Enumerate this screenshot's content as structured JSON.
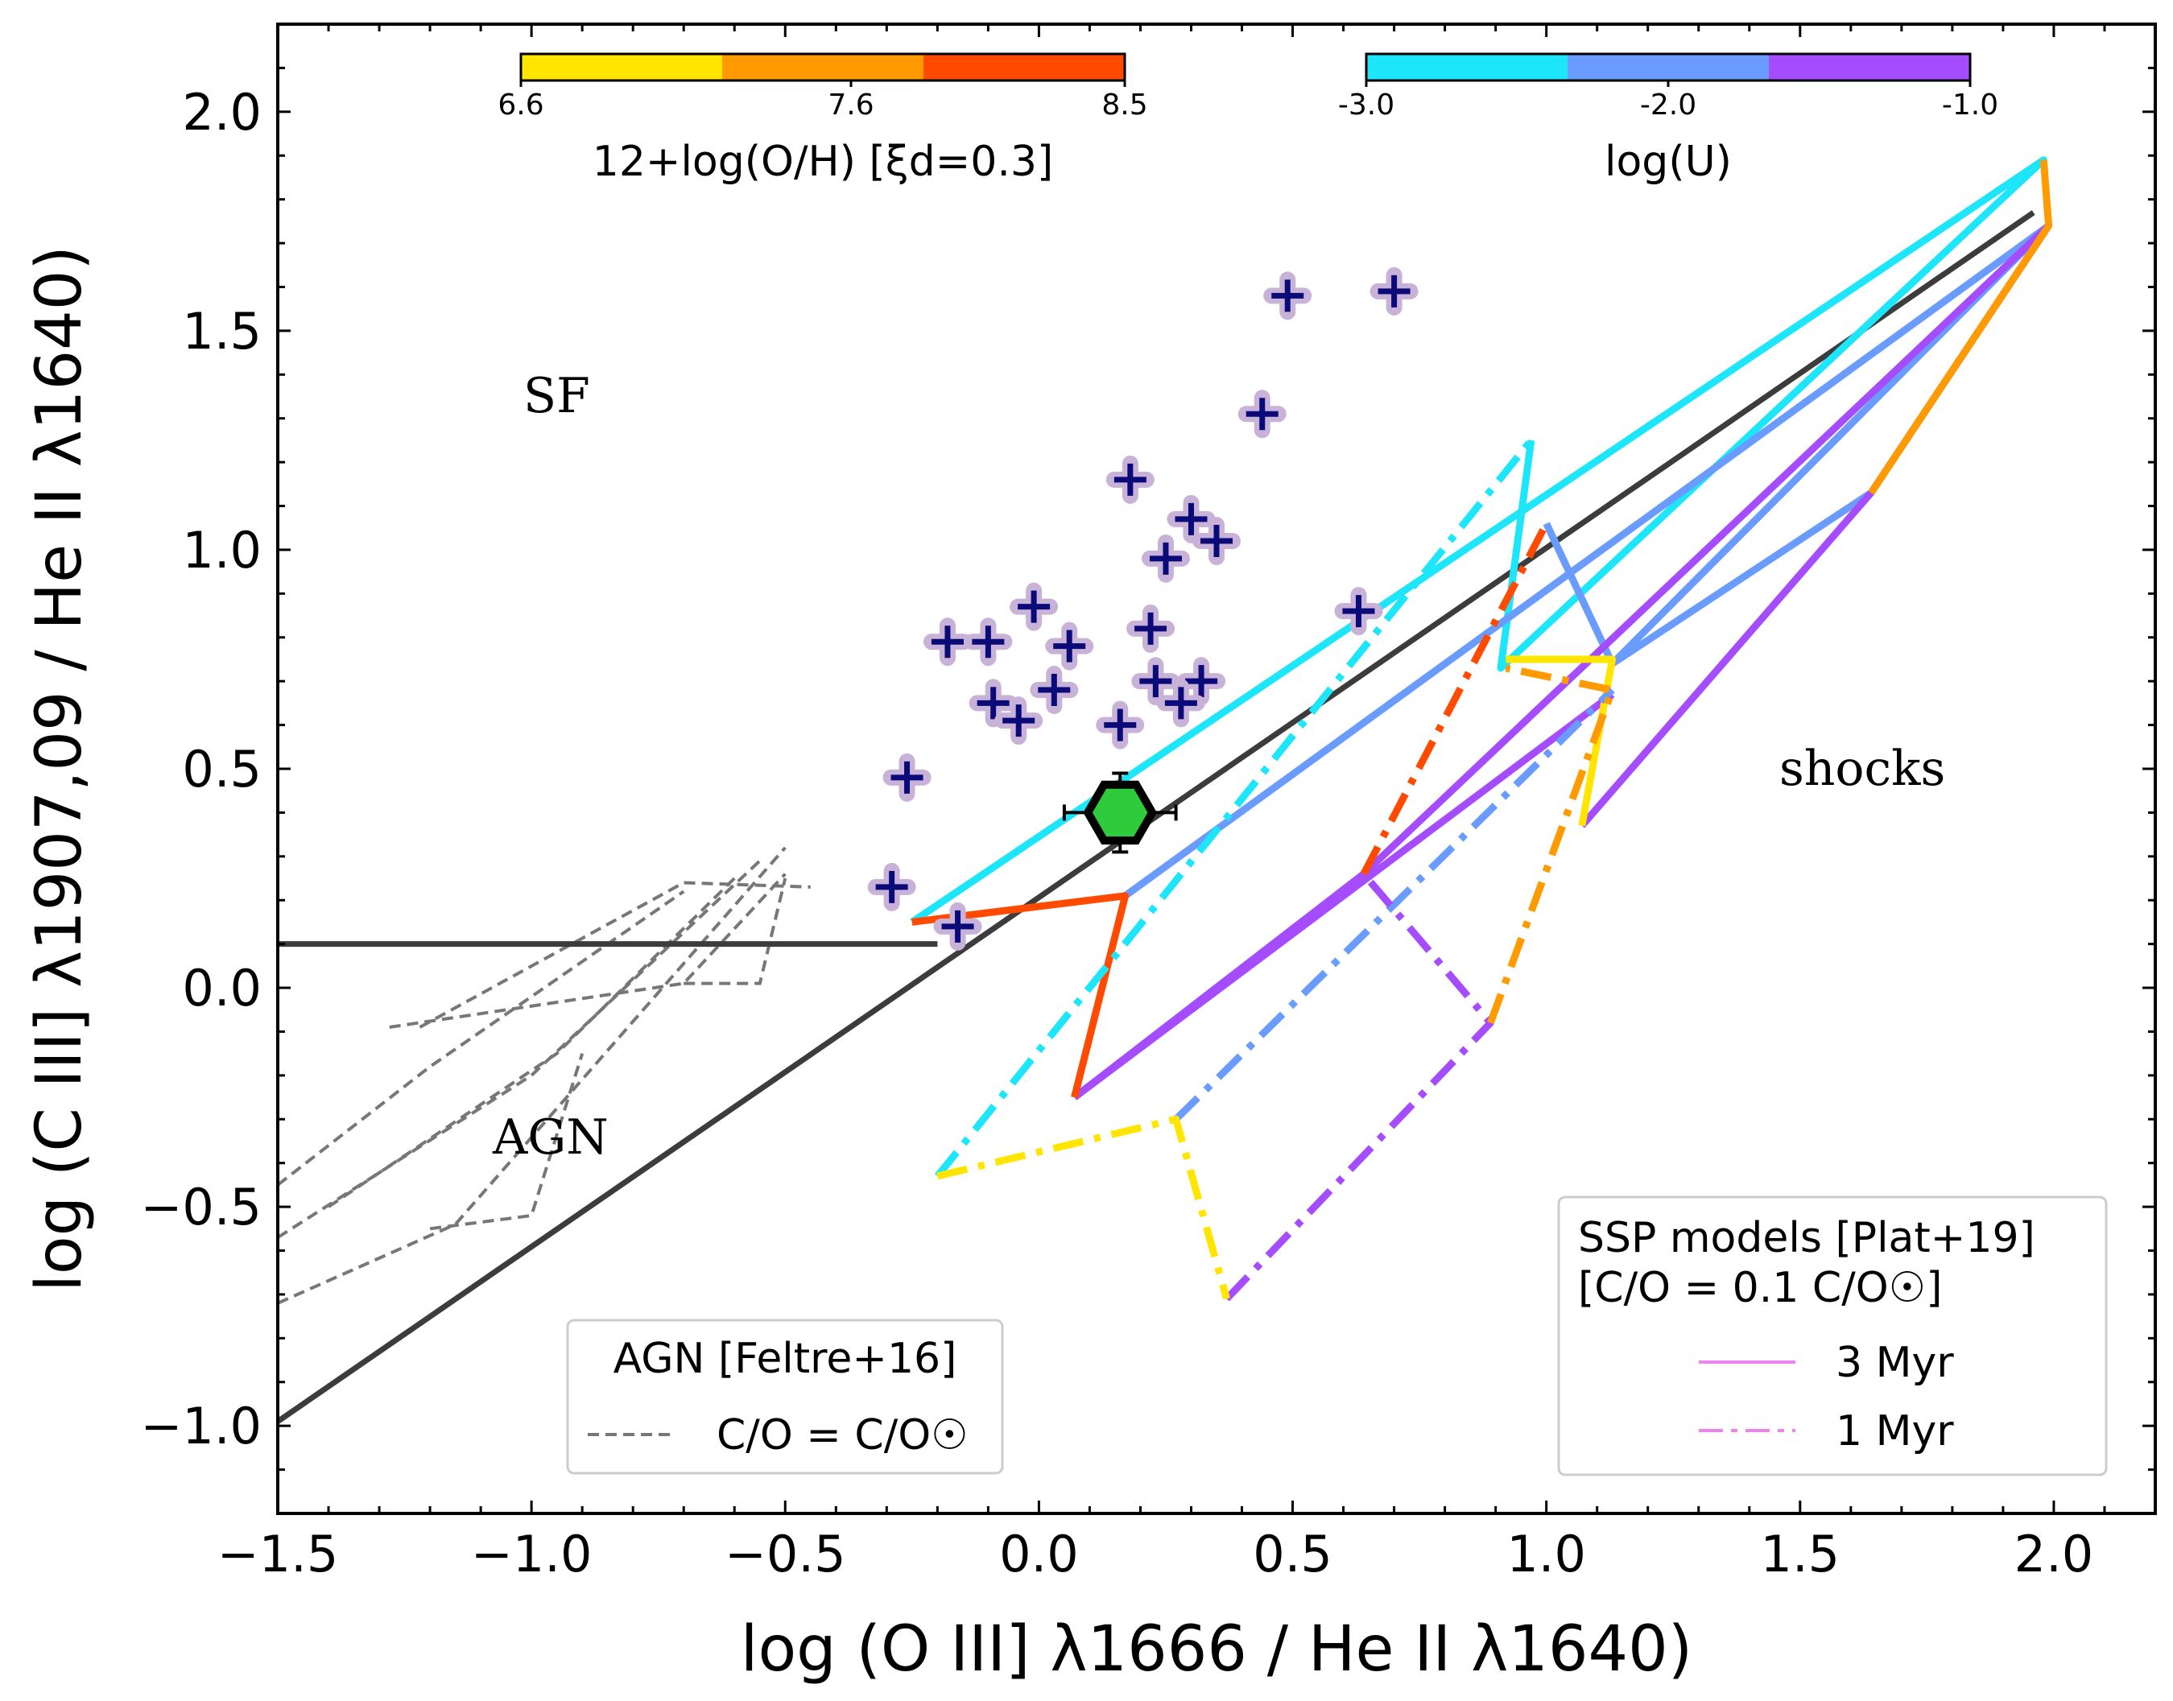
{
  "chart_data": {
    "type": "scatter",
    "xlabel": "log (O III] λ1666 / He II λ1640)",
    "ylabel": "log (C III] λ1907,09 / He II λ1640)",
    "xlim": [
      -1.5,
      2.2
    ],
    "ylim": [
      -1.2,
      2.2
    ],
    "xticks": [
      "−1.5",
      "−1.0",
      "−0.5",
      "0.0",
      "0.5",
      "1.0",
      "1.5",
      "2.0"
    ],
    "yticks": [
      "−1.0",
      "−0.5",
      "0.0",
      "0.5",
      "1.0",
      "1.5",
      "2.0"
    ],
    "region_labels": [
      "SF",
      "AGN",
      "shocks"
    ],
    "colorbars": [
      {
        "title": "12+log(O/H) [ξd=0.3]",
        "ticks": [
          "6.6",
          "7.6",
          "8.5"
        ],
        "colors": [
          "#ffe500",
          "#ff9a00",
          "#ff4a00"
        ]
      },
      {
        "title": "log(U)",
        "ticks": [
          "-3.0",
          "-2.0",
          "-1.0"
        ],
        "colors": [
          "#1ee6fa",
          "#6a9cff",
          "#a64cff"
        ]
      }
    ],
    "legends": [
      {
        "title": "AGN [Feltre+16]",
        "entries": [
          {
            "label": "C/O = C/O☉",
            "style": "dashed",
            "color": "#777777"
          }
        ]
      },
      {
        "title_lines": [
          "SSP models [Plat+19]",
          "[C/O = 0.1 C/O☉]"
        ],
        "entries": [
          {
            "label": "3 Myr",
            "style": "solid",
            "color": "#ee82ee"
          },
          {
            "label": "1 Myr",
            "style": "dashdot",
            "color": "#ee82ee"
          }
        ]
      }
    ],
    "dividing_lines": [
      {
        "points": [
          [
            -1.5,
            0.1
          ],
          [
            -0.2,
            0.1
          ]
        ],
        "color": "#3c3c3c"
      },
      {
        "points": [
          [
            -1.5,
            -0.99
          ],
          [
            1.96,
            1.77
          ]
        ],
        "color": "#3c3c3c"
      }
    ],
    "scatter_points": [
      [
        0.49,
        1.58
      ],
      [
        0.7,
        1.59
      ],
      [
        0.44,
        1.31
      ],
      [
        0.18,
        1.16
      ],
      [
        0.3,
        1.07
      ],
      [
        0.35,
        1.02
      ],
      [
        0.25,
        0.98
      ],
      [
        -0.01,
        0.87
      ],
      [
        0.63,
        0.86
      ],
      [
        0.22,
        0.82
      ],
      [
        -0.18,
        0.79
      ],
      [
        -0.1,
        0.79
      ],
      [
        0.06,
        0.78
      ],
      [
        0.23,
        0.7
      ],
      [
        0.32,
        0.7
      ],
      [
        -0.09,
        0.65
      ],
      [
        0.03,
        0.68
      ],
      [
        0.28,
        0.65
      ],
      [
        -0.04,
        0.61
      ],
      [
        0.16,
        0.6
      ],
      [
        -0.26,
        0.48
      ],
      [
        -0.29,
        0.23
      ],
      [
        -0.16,
        0.14
      ]
    ],
    "highlight_point": {
      "x": 0.16,
      "y": 0.4,
      "xerr": 0.11,
      "yerr": 0.09
    },
    "model_grid_lines": [
      {
        "style": "solid",
        "color": "#1ee6fa",
        "points": [
          [
            -0.25,
            0.15
          ],
          [
            1.98,
            1.89
          ],
          [
            0.91,
            0.73
          ],
          [
            0.97,
            1.25
          ]
        ]
      },
      {
        "style": "solid",
        "color": "#6a9cff",
        "points": [
          [
            0.17,
            0.21
          ],
          [
            1.99,
            1.74
          ],
          [
            1.13,
            0.74
          ],
          [
            1.0,
            1.06
          ]
        ]
      },
      {
        "style": "solid",
        "color": "#6a9cff",
        "points": [
          [
            1.13,
            0.74
          ],
          [
            1.64,
            1.13
          ]
        ]
      },
      {
        "style": "solid",
        "color": "#a64cff",
        "points": [
          [
            0.07,
            -0.25
          ],
          [
            1.13,
            0.67
          ]
        ]
      },
      {
        "style": "solid",
        "color": "#a64cff",
        "points": [
          [
            1.07,
            0.37
          ],
          [
            1.64,
            1.13
          ],
          [
            1.99,
            1.74
          ],
          [
            0.64,
            0.26
          ],
          [
            0.07,
            -0.25
          ]
        ]
      },
      {
        "style": "solid",
        "color": "#ffe500",
        "points": [
          [
            1.07,
            0.37
          ],
          [
            1.13,
            0.75
          ],
          [
            0.92,
            0.75
          ]
        ]
      },
      {
        "style": "solid",
        "color": "#ff9a00",
        "points": [
          [
            1.64,
            1.13
          ],
          [
            1.99,
            1.74
          ],
          [
            1.98,
            1.89
          ]
        ]
      },
      {
        "style": "solid",
        "color": "#ff4a00",
        "points": [
          [
            -0.25,
            0.15
          ],
          [
            0.17,
            0.21
          ],
          [
            0.07,
            -0.25
          ]
        ]
      },
      {
        "style": "dashdot",
        "color": "#1ee6fa",
        "points": [
          [
            -0.2,
            -0.43
          ],
          [
            0.97,
            1.25
          ]
        ]
      },
      {
        "style": "dashdot",
        "color": "#6a9cff",
        "points": [
          [
            0.27,
            -0.3
          ],
          [
            1.13,
            0.68
          ]
        ]
      },
      {
        "style": "dashdot",
        "color": "#a64cff",
        "points": [
          [
            0.37,
            -0.71
          ],
          [
            0.89,
            -0.08
          ],
          [
            0.64,
            0.26
          ]
        ]
      },
      {
        "style": "dashdot",
        "color": "#ffe500",
        "points": [
          [
            -0.2,
            -0.43
          ],
          [
            0.27,
            -0.3
          ],
          [
            0.37,
            -0.71
          ]
        ]
      },
      {
        "style": "dashdot",
        "color": "#ff9a00",
        "points": [
          [
            0.89,
            -0.08
          ],
          [
            1.13,
            0.68
          ],
          [
            0.92,
            0.73
          ]
        ]
      },
      {
        "style": "dashdot",
        "color": "#ff4a00",
        "points": [
          [
            0.64,
            0.26
          ],
          [
            1.0,
            1.06
          ]
        ]
      }
    ],
    "agn_grid_lines": [
      [
        [
          -1.28,
          -0.09
        ],
        [
          -0.7,
          0.01
        ],
        [
          -0.5,
          0.26
        ]
      ],
      [
        [
          -1.22,
          -0.09
        ],
        [
          -0.7,
          0.24
        ],
        [
          -0.45,
          0.23
        ]
      ],
      [
        [
          -1.5,
          -0.45
        ],
        [
          -1.2,
          -0.18
        ],
        [
          -0.7,
          0.22
        ]
      ],
      [
        [
          -1.5,
          -0.57
        ],
        [
          -1.0,
          -0.2
        ],
        [
          -0.55,
          0.29
        ]
      ],
      [
        [
          -1.5,
          -0.72
        ],
        [
          -1.15,
          -0.54
        ],
        [
          -0.5,
          0.32
        ]
      ],
      [
        [
          -1.4,
          -0.5
        ],
        [
          -0.95,
          -0.15
        ],
        [
          -0.6,
          0.25
        ]
      ],
      [
        [
          -1.2,
          -0.55
        ],
        [
          -1.0,
          -0.52
        ],
        [
          -0.9,
          -0.15
        ]
      ],
      [
        [
          -0.7,
          0.01
        ],
        [
          -0.55,
          0.01
        ],
        [
          -0.5,
          0.25
        ]
      ]
    ]
  }
}
